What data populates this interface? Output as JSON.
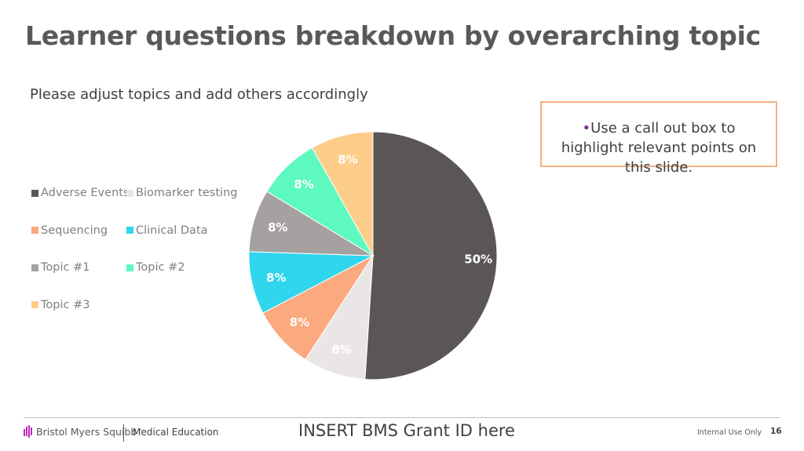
{
  "slide": {
    "title": "Learner questions breakdown by overarching topic",
    "subtitle": "Please adjust topics and add others accordingly",
    "callout": {
      "bullet": "•",
      "text": "Use a call out box to highlight relevant points on this slide."
    }
  },
  "footer": {
    "logo_text": "Bristol Myers Squibb",
    "logo_mark": "™",
    "department": "Medical Education",
    "grant_placeholder": "INSERT BMS Grant ID here",
    "classification": "Internal Use Only",
    "page_number": "16"
  },
  "colors": {
    "adverse_events": "#5a5656",
    "biomarker_testing": "#ebe6e6",
    "sequencing": "#fba97e",
    "clinical_data": "#2fd6ee",
    "topic_1": "#a6a1a1",
    "topic_2": "#5ef9be",
    "topic_3": "#fdcd8a",
    "callout_border": "#f4b183",
    "bullet": "#7b2d8e"
  },
  "chart_data": {
    "type": "pie",
    "title": "",
    "legend_position": "left",
    "series": [
      {
        "name": "Adverse Events",
        "value": 50,
        "label": "50%",
        "color": "#5a5656"
      },
      {
        "name": "Biomarker testing",
        "value": 8,
        "label": "8%",
        "color": "#ebe6e6"
      },
      {
        "name": "Sequencing",
        "value": 8,
        "label": "8%",
        "color": "#fba97e"
      },
      {
        "name": "Clinical Data",
        "value": 8,
        "label": "8%",
        "color": "#2fd6ee"
      },
      {
        "name": "Topic #1",
        "value": 8,
        "label": "8%",
        "color": "#a6a1a1"
      },
      {
        "name": "Topic #2",
        "value": 8,
        "label": "8%",
        "color": "#5ef9be"
      },
      {
        "name": "Topic #3",
        "value": 8,
        "label": "8%",
        "color": "#fdcd8a"
      }
    ]
  }
}
